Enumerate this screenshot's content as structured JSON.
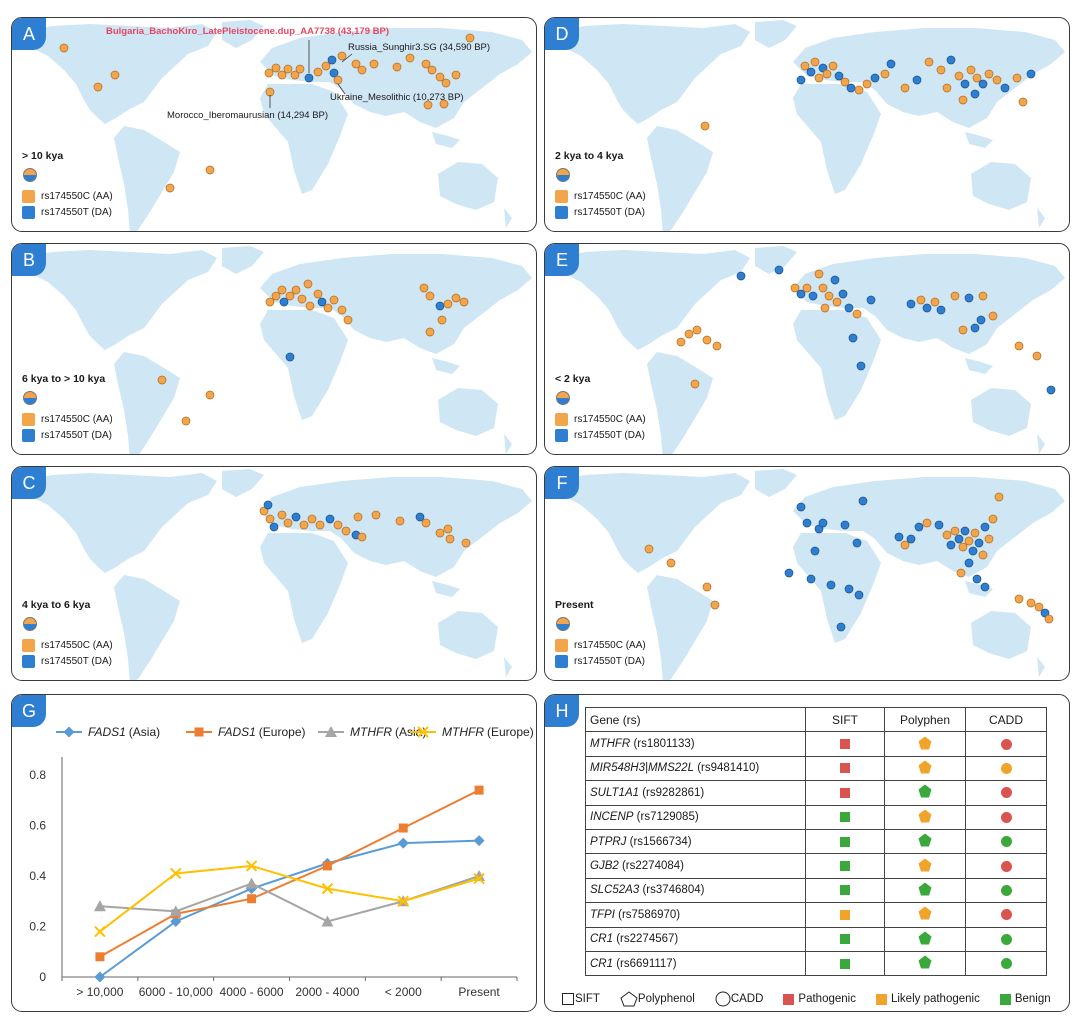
{
  "panels": {
    "A": {
      "badge": "A",
      "title": "> 10 kya"
    },
    "B": {
      "badge": "B",
      "title": "6 kya to > 10 kya"
    },
    "C": {
      "badge": "C",
      "title": "4 kya to 6 kya"
    },
    "D": {
      "badge": "D",
      "title": "2 kya to 4 kya"
    },
    "E": {
      "badge": "E",
      "title": "< 2 kya"
    },
    "F": {
      "badge": "F",
      "title": "Present"
    },
    "G": {
      "badge": "G"
    },
    "H": {
      "badge": "H"
    }
  },
  "map_legend": {
    "aa": "rs174550C (AA)",
    "da": "rs174550T (DA)"
  },
  "annotations": {
    "bulgaria": "Bulgaria_BachoKiro_LatePleistocene.dup_AA7738 (43,179 BP)",
    "russia": "Russia_Sunghir3.SG (34,590 BP)",
    "ukraine": "Ukraine_Mesolithic (10,273 BP)",
    "morocco": "Morocco_Iberomaurusian (14,294 BP)"
  },
  "colors": {
    "ancestral": "#f3a54b",
    "derived": "#2e7fd1",
    "land": "#cfe6f4",
    "pathogenic": "#d9534f",
    "likely": "#f0a52a",
    "benign": "#3aa83a"
  },
  "chart_data": {
    "type": "line",
    "categories": [
      "> 10,000",
      "6000 - 10,000",
      "4000 - 6000",
      "2000 - 4000",
      "< 2000",
      "Present"
    ],
    "ylim": [
      0,
      0.8
    ],
    "yticks": [
      "0",
      "0.2",
      "0.4",
      "0.6",
      "0.8"
    ],
    "series": [
      {
        "gene": "FADS1",
        "pop": "(Asia)",
        "color": "#5b9bd5",
        "marker": "diamond",
        "values": [
          0.0,
          0.22,
          0.35,
          0.45,
          0.53,
          0.54
        ]
      },
      {
        "gene": "FADS1",
        "pop": "(Europe)",
        "color": "#ed7d31",
        "marker": "square",
        "values": [
          0.08,
          0.25,
          0.31,
          0.44,
          0.59,
          0.74
        ]
      },
      {
        "gene": "MTHFR",
        "pop": "(Asia)",
        "color": "#a5a5a5",
        "marker": "triangle",
        "values": [
          0.28,
          0.26,
          0.37,
          0.22,
          0.3,
          0.4
        ]
      },
      {
        "gene": "MTHFR",
        "pop": "(Europe)",
        "color": "#ffc000",
        "marker": "x",
        "values": [
          0.18,
          0.41,
          0.44,
          0.35,
          0.3,
          0.39
        ]
      }
    ]
  },
  "table": {
    "headers": [
      "Gene (rs)",
      "SIFT",
      "Polyphen",
      "CADD"
    ],
    "rows": [
      {
        "gene": "MTHFR",
        "rs": "(rs1801133)",
        "sift": "pathogenic",
        "poly": "likely",
        "cadd": "pathogenic"
      },
      {
        "gene": "MIR548H3|MMS22L",
        "rs": "(rs9481410)",
        "sift": "pathogenic",
        "poly": "likely",
        "cadd": "likely"
      },
      {
        "gene": "SULT1A1",
        "rs": "(rs9282861)",
        "sift": "pathogenic",
        "poly": "benign",
        "cadd": "pathogenic"
      },
      {
        "gene": "INCENP",
        "rs": "(rs7129085)",
        "sift": "benign",
        "poly": "likely",
        "cadd": "pathogenic"
      },
      {
        "gene": "PTPRJ",
        "rs": "(rs1566734)",
        "sift": "benign",
        "poly": "benign",
        "cadd": "benign"
      },
      {
        "gene": "GJB2",
        "rs": "(rs2274084)",
        "sift": "benign",
        "poly": "likely",
        "cadd": "pathogenic"
      },
      {
        "gene": "SLC52A3",
        "rs": "(rs3746804)",
        "sift": "benign",
        "poly": "benign",
        "cadd": "benign"
      },
      {
        "gene": "TFPI",
        "rs": "(rs7586970)",
        "sift": "likely",
        "poly": "likely",
        "cadd": "pathogenic"
      },
      {
        "gene": "CR1",
        "rs": "(rs2274567)",
        "sift": "benign",
        "poly": "benign",
        "cadd": "benign"
      },
      {
        "gene": "CR1",
        "rs": "(rs6691117)",
        "sift": "benign",
        "poly": "benign",
        "cadd": "benign"
      }
    ],
    "legend": {
      "sift": "SIFT",
      "poly": "Polyphenol",
      "cadd": "CADD",
      "pathogenic": "Pathogenic",
      "likely": "Likely pathogenic",
      "benign": "Benign"
    }
  }
}
